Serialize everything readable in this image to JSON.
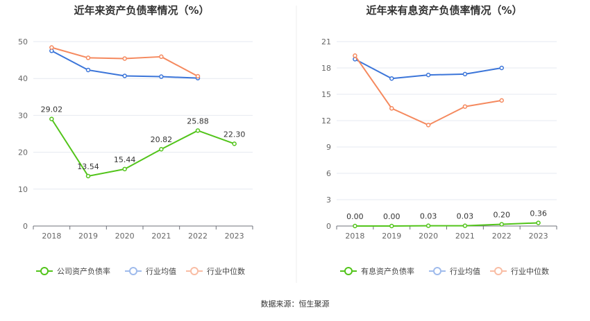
{
  "chart_data": [
    {
      "type": "line",
      "title": "近年来资产负债率情况（%）",
      "categories": [
        "2018",
        "2019",
        "2020",
        "2021",
        "2022",
        "2023"
      ],
      "ylim": [
        0,
        50
      ],
      "yticks": [
        0,
        10,
        20,
        30,
        40,
        50
      ],
      "ytick_labels": [
        "0",
        "10",
        "20",
        "30",
        "40",
        "50"
      ],
      "series": [
        {
          "name": "公司资产负债率",
          "color": "#52c41a",
          "values": [
            29.02,
            13.54,
            15.44,
            20.82,
            25.88,
            22.3
          ],
          "labels": [
            "29.02",
            "13.54",
            "15.44",
            "20.82",
            "25.88",
            "22.30"
          ]
        },
        {
          "name": "行业均值",
          "color": "#3b75d9",
          "values": [
            47.5,
            42.3,
            40.7,
            40.5,
            40.1,
            null
          ]
        },
        {
          "name": "行业中位数",
          "color": "#f5895e",
          "values": [
            48.4,
            45.6,
            45.4,
            45.9,
            40.6,
            null
          ]
        }
      ]
    },
    {
      "type": "line",
      "title": "近年来有息资产负债率情况（%）",
      "categories": [
        "2018",
        "2019",
        "2020",
        "2021",
        "2022",
        "2023"
      ],
      "ylim": [
        0,
        21
      ],
      "yticks": [
        0,
        3,
        6,
        9,
        12,
        15,
        18,
        21
      ],
      "ytick_labels": [
        "0",
        "3",
        "6",
        "9",
        "12",
        "15",
        "18",
        "21"
      ],
      "series": [
        {
          "name": "有息资产负债率",
          "color": "#52c41a",
          "values": [
            0.0,
            0.0,
            0.03,
            0.03,
            0.2,
            0.36
          ],
          "labels": [
            "0.00",
            "0.00",
            "0.03",
            "0.03",
            "0.20",
            "0.36"
          ]
        },
        {
          "name": "行业均值",
          "color": "#3b75d9",
          "values": [
            19.0,
            16.8,
            17.2,
            17.3,
            18.0,
            null
          ]
        },
        {
          "name": "行业中位数",
          "color": "#f5895e",
          "values": [
            19.4,
            13.4,
            11.5,
            13.6,
            14.3,
            null
          ]
        }
      ]
    }
  ],
  "footer": {
    "source": "数据来源：恒生聚源"
  }
}
